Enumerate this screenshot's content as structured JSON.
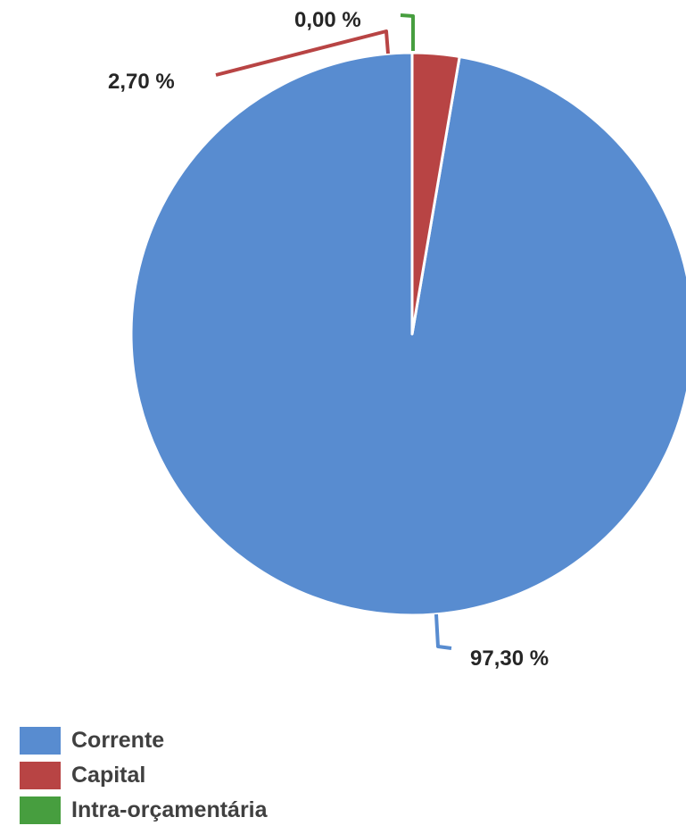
{
  "chart_data": {
    "type": "pie",
    "series": [
      {
        "name": "Corrente",
        "value": 97.3,
        "label": "97,30 %",
        "color": "#588CD0"
      },
      {
        "name": "Capital",
        "value": 2.7,
        "label": "2,70 %",
        "color": "#B84444"
      },
      {
        "name": "Intra-orçamentária",
        "value": 0.0,
        "label": "0,00 %",
        "color": "#479E3F"
      }
    ],
    "legend_position": "bottom-left"
  }
}
